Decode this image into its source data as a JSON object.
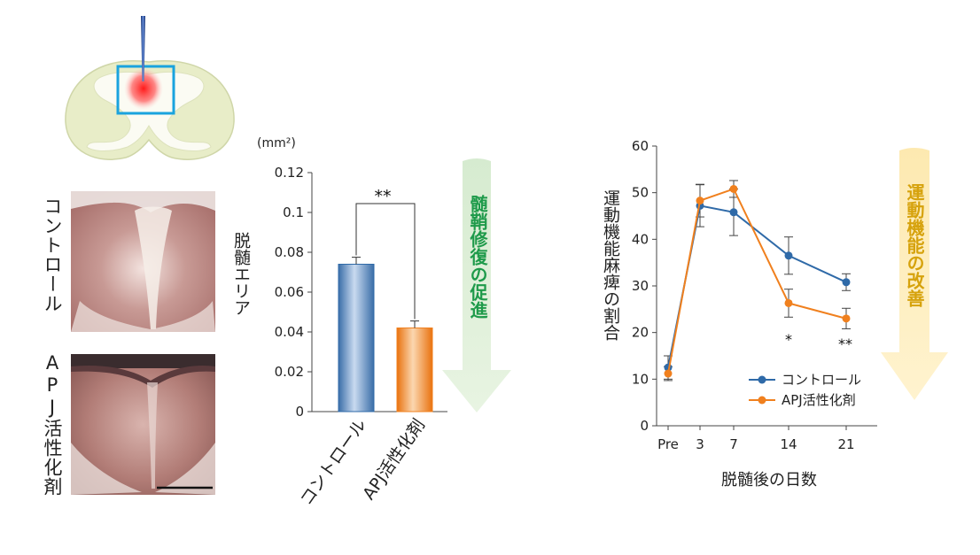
{
  "colors": {
    "control": "#2f6aa8",
    "apj": "#f0801e",
    "myelin_arrow": "#1e9a4a",
    "motor_arrow": "#d6a20c",
    "highlight_box": "#1aa3de"
  },
  "section_labels": {
    "control": "コントロール",
    "apj": "APJ活性化剤"
  },
  "bar_chart": {
    "unit": "(mm²)",
    "ylabel": "脱髄エリア",
    "significance": "**",
    "arrow_label": "髄鞘修復の促進"
  },
  "line_chart": {
    "ylabel": "運動機能麻痺の割合",
    "xlabel": "脱髄後の日数",
    "arrow_label": "運動機能の改善",
    "sig_14": "*",
    "sig_21": "**"
  },
  "chart_data": [
    {
      "type": "bar",
      "categories": [
        "コントロール",
        "APJ活性化剤"
      ],
      "values": [
        0.074,
        0.042
      ],
      "errors": [
        0.0035,
        0.0035
      ],
      "title": "",
      "xlabel": "",
      "ylabel": "脱髄エリア",
      "ylim": [
        0,
        0.12
      ],
      "yticks": [
        "0",
        "0.02",
        "0.04",
        "0.06",
        "0.08",
        "0.1",
        "0.12"
      ],
      "grid": false
    },
    {
      "type": "line",
      "x": [
        "Pre",
        "3",
        "7",
        "14",
        "21"
      ],
      "series": [
        {
          "name": "コントロール",
          "values": [
            12.5,
            47.2,
            45.8,
            36.5,
            30.8
          ],
          "errors": [
            2.5,
            4.5,
            5.0,
            4.0,
            1.8
          ]
        },
        {
          "name": "APJ活性化剤",
          "values": [
            11.2,
            48.3,
            50.8,
            26.3,
            23.0
          ],
          "errors": [
            1.5,
            3.5,
            1.8,
            3.0,
            2.2
          ]
        }
      ],
      "title": "",
      "xlabel": "脱髄後の日数",
      "ylabel": "運動機能麻痺の割合",
      "ylim": [
        0,
        60
      ],
      "yticks": [
        "0",
        "10",
        "20",
        "30",
        "40",
        "50",
        "60"
      ],
      "legend": "bottom-right",
      "grid": false
    }
  ]
}
